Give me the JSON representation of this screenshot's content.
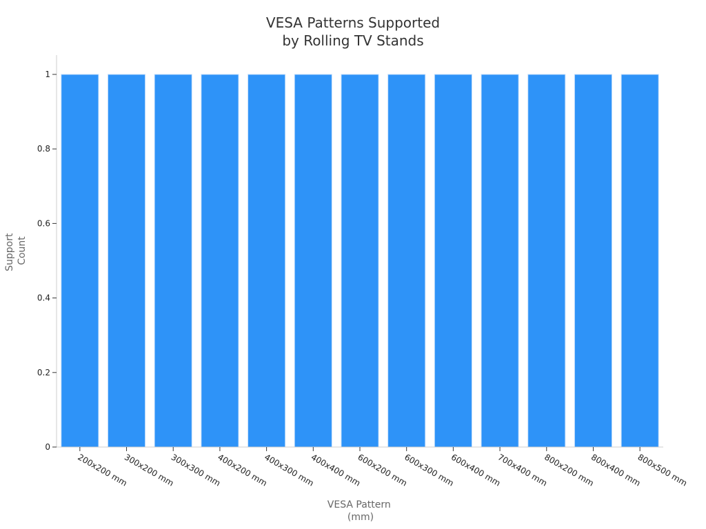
{
  "title_lines": [
    "VESA Patterns Supported",
    "by Rolling TV Stands"
  ],
  "colors": {
    "bar_fill": "#2E93F8",
    "bar_stroke": "#C8E0FB",
    "axis": "#CCCCCC",
    "title": "#333333",
    "axis_title": "#666666",
    "tick_text": "#222222"
  },
  "chart_data": {
    "type": "bar",
    "title": "VESA Patterns Supported by Rolling TV Stands",
    "xlabel_lines": [
      "VESA Pattern",
      "(mm)"
    ],
    "ylabel_lines": [
      "Support",
      "Count"
    ],
    "categories": [
      "200x200 mm",
      "300x200 mm",
      "300x300 mm",
      "400x200 mm",
      "400x300 mm",
      "400x400 mm",
      "600x200 mm",
      "600x300 mm",
      "600x400 mm",
      "700x400 mm",
      "800x200 mm",
      "800x400 mm",
      "800x500 mm"
    ],
    "values": [
      1,
      1,
      1,
      1,
      1,
      1,
      1,
      1,
      1,
      1,
      1,
      1,
      1
    ],
    "ylim": [
      0,
      1
    ],
    "yticks": [
      0,
      0.2,
      0.4,
      0.6,
      0.8,
      1
    ],
    "ytick_labels": [
      "0",
      "0.2",
      "0.4",
      "0.6",
      "0.8",
      "1"
    ],
    "grid": false,
    "legend": "none"
  }
}
